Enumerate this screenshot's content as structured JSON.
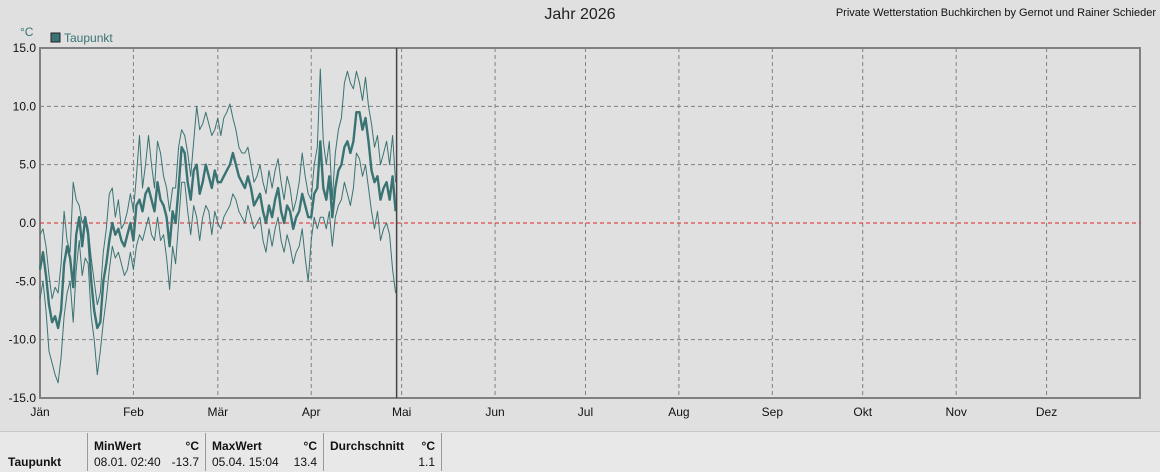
{
  "header": {
    "title": "Jahr 2026",
    "credit": "Private Wetterstation Buchkirchen by Gernot und Rainer Schieder"
  },
  "chart_data": {
    "type": "line",
    "yunit": "°C",
    "ylim": [
      -15,
      15
    ],
    "yticks": [
      "15.0",
      "10.0",
      "5.0",
      "0.0",
      "-5.0",
      "-10.0",
      "-15.0"
    ],
    "month_labels": [
      "Jän",
      "Feb",
      "Mär",
      "Apr",
      "Mai",
      "Jun",
      "Jul",
      "Aug",
      "Sep",
      "Okt",
      "Nov",
      "Dez"
    ],
    "legend": "Taupunkt",
    "grid": true,
    "reference_line": 0,
    "series": [
      {
        "name": "Taupunkt",
        "role": "average",
        "x": [
          1,
          2,
          3,
          4,
          5,
          6,
          7,
          8,
          9,
          10,
          11,
          12,
          13,
          14,
          15,
          16,
          17,
          18,
          19,
          20,
          21,
          22,
          23,
          24,
          25,
          26,
          27,
          28,
          29,
          30,
          31,
          32,
          33,
          34,
          35,
          36,
          37,
          38,
          39,
          40,
          41,
          42,
          43,
          44,
          45,
          46,
          47,
          48,
          49,
          50,
          51,
          52,
          53,
          54,
          55,
          56,
          57,
          58,
          59,
          60,
          61,
          62,
          63,
          64,
          65,
          66,
          67,
          68,
          69,
          70,
          71,
          72,
          73,
          74,
          75,
          76,
          77,
          78,
          79,
          80,
          81,
          82,
          83,
          84,
          85,
          86,
          87,
          88,
          89,
          90,
          91,
          92,
          93,
          94,
          95,
          96,
          97,
          98,
          99,
          100,
          101,
          102,
          103,
          104,
          105,
          106,
          107,
          108,
          109,
          110,
          111,
          112,
          113,
          114,
          115,
          116,
          117,
          118,
          119
        ],
        "y": [
          -4.0,
          -2.5,
          -4.5,
          -7.0,
          -8.5,
          -8.0,
          -9.0,
          -7.5,
          -3.5,
          -2.0,
          -3.0,
          -5.5,
          -1.0,
          0.5,
          -2.0,
          0.5,
          -1.0,
          -5.0,
          -7.5,
          -9.0,
          -8.5,
          -5.0,
          -3.5,
          -1.5,
          0.0,
          -1.0,
          -0.5,
          -1.5,
          -2.0,
          -1.0,
          0.0,
          -1.5,
          1.5,
          2.0,
          1.0,
          2.5,
          3.0,
          2.0,
          1.0,
          3.5,
          2.0,
          1.5,
          0.5,
          -2.0,
          1.0,
          0.0,
          3.0,
          6.5,
          6.0,
          3.5,
          2.0,
          4.5,
          5.0,
          2.5,
          3.5,
          5.0,
          4.0,
          3.0,
          4.5,
          3.5,
          3.5,
          4.0,
          4.5,
          5.0,
          6.0,
          5.0,
          4.0,
          3.5,
          3.0,
          4.0,
          3.0,
          1.5,
          2.0,
          2.5,
          1.0,
          0.0,
          1.5,
          0.5,
          2.0,
          3.0,
          1.0,
          0.0,
          1.5,
          1.0,
          -0.5,
          0.5,
          1.0,
          2.5,
          1.5,
          0.5,
          0.5,
          2.5,
          3.0,
          7.0,
          3.0,
          2.0,
          4.0,
          0.5,
          3.0,
          4.5,
          5.0,
          6.5,
          7.0,
          6.0,
          7.0,
          9.5,
          9.5,
          8.0,
          9.0,
          7.0,
          4.5,
          3.5,
          4.0,
          2.0,
          3.0,
          3.5,
          2.0,
          4.0,
          1.0
        ]
      },
      {
        "name": "Taupunkt",
        "role": "max",
        "x": [
          1,
          2,
          3,
          4,
          5,
          6,
          7,
          8,
          9,
          10,
          11,
          12,
          13,
          14,
          15,
          16,
          17,
          18,
          19,
          20,
          21,
          22,
          23,
          24,
          25,
          26,
          27,
          28,
          29,
          30,
          31,
          32,
          33,
          34,
          35,
          36,
          37,
          38,
          39,
          40,
          41,
          42,
          43,
          44,
          45,
          46,
          47,
          48,
          49,
          50,
          51,
          52,
          53,
          54,
          55,
          56,
          57,
          58,
          59,
          60,
          61,
          62,
          63,
          64,
          65,
          66,
          67,
          68,
          69,
          70,
          71,
          72,
          73,
          74,
          75,
          76,
          77,
          78,
          79,
          80,
          81,
          82,
          83,
          84,
          85,
          86,
          87,
          88,
          89,
          90,
          91,
          92,
          93,
          94,
          95,
          96,
          97,
          98,
          99,
          100,
          101,
          102,
          103,
          104,
          105,
          106,
          107,
          108,
          109,
          110,
          111,
          112,
          113,
          114,
          115,
          116,
          117,
          118,
          119
        ],
        "y": [
          -1.0,
          -0.5,
          -2.0,
          -4.5,
          -6.5,
          -5.5,
          -6.0,
          -3.5,
          1.0,
          -1.5,
          -2.5,
          3.5,
          2.0,
          1.5,
          0.0,
          0.5,
          -0.5,
          -3.0,
          -5.0,
          -7.0,
          -6.0,
          -2.5,
          -0.5,
          2.5,
          3.0,
          0.5,
          2.0,
          -0.5,
          0.0,
          1.0,
          2.5,
          1.0,
          4.0,
          7.5,
          3.0,
          5.0,
          7.5,
          5.0,
          3.0,
          7.0,
          6.0,
          4.0,
          3.0,
          1.0,
          3.0,
          3.0,
          6.5,
          8.0,
          7.5,
          6.0,
          4.0,
          7.0,
          10.0,
          8.0,
          8.5,
          9.5,
          8.5,
          7.5,
          8.0,
          9.0,
          7.5,
          9.0,
          9.5,
          10.2,
          9.0,
          8.0,
          6.5,
          6.0,
          6.0,
          6.5,
          5.0,
          3.5,
          4.0,
          5.0,
          3.5,
          2.5,
          4.5,
          3.0,
          4.5,
          5.5,
          3.5,
          2.0,
          4.0,
          3.0,
          1.0,
          2.0,
          3.5,
          6.0,
          4.0,
          2.5,
          2.0,
          5.0,
          6.5,
          13.2,
          7.0,
          5.0,
          7.0,
          2.0,
          6.0,
          8.0,
          9.0,
          12.0,
          13.0,
          12.0,
          11.5,
          13.0,
          12.0,
          10.5,
          12.5,
          10.0,
          8.5,
          6.5,
          7.5,
          5.0,
          6.0,
          7.0,
          5.0,
          7.5,
          3.5
        ]
      },
      {
        "name": "Taupunkt",
        "role": "min",
        "x": [
          1,
          2,
          3,
          4,
          5,
          6,
          7,
          8,
          9,
          10,
          11,
          12,
          13,
          14,
          15,
          16,
          17,
          18,
          19,
          20,
          21,
          22,
          23,
          24,
          25,
          26,
          27,
          28,
          29,
          30,
          31,
          32,
          33,
          34,
          35,
          36,
          37,
          38,
          39,
          40,
          41,
          42,
          43,
          44,
          45,
          46,
          47,
          48,
          49,
          50,
          51,
          52,
          53,
          54,
          55,
          56,
          57,
          58,
          59,
          60,
          61,
          62,
          63,
          64,
          65,
          66,
          67,
          68,
          69,
          70,
          71,
          72,
          73,
          74,
          75,
          76,
          77,
          78,
          79,
          80,
          81,
          82,
          83,
          84,
          85,
          86,
          87,
          88,
          89,
          90,
          91,
          92,
          93,
          94,
          95,
          96,
          97,
          98,
          99,
          100,
          101,
          102,
          103,
          104,
          105,
          106,
          107,
          108,
          109,
          110,
          111,
          112,
          113,
          114,
          115,
          116,
          117,
          118,
          119
        ],
        "y": [
          -6.5,
          -5.0,
          -7.5,
          -11.0,
          -12.0,
          -13.0,
          -13.7,
          -11.5,
          -8.0,
          -6.0,
          -5.0,
          -8.5,
          -4.0,
          -1.5,
          -4.5,
          -3.0,
          -3.5,
          -8.0,
          -10.0,
          -13.0,
          -11.0,
          -8.5,
          -6.5,
          -4.0,
          -2.0,
          -3.0,
          -2.5,
          -3.5,
          -4.5,
          -4.0,
          -2.5,
          -4.0,
          -2.0,
          -1.0,
          -1.5,
          -0.5,
          0.5,
          -1.0,
          -1.5,
          0.5,
          -1.5,
          -1.0,
          -3.0,
          -5.7,
          -2.0,
          -3.5,
          0.0,
          3.5,
          3.5,
          1.0,
          -1.0,
          1.5,
          0.5,
          -1.5,
          0.5,
          1.5,
          1.0,
          -1.0,
          1.0,
          0.0,
          -0.5,
          0.5,
          1.0,
          1.5,
          2.5,
          2.0,
          1.0,
          0.5,
          0.0,
          1.5,
          0.5,
          -0.5,
          0.0,
          0.5,
          -1.5,
          -2.5,
          -0.5,
          -2.0,
          -0.5,
          0.5,
          -1.5,
          -2.5,
          -1.0,
          -2.0,
          -3.5,
          -2.5,
          -2.0,
          -0.5,
          -3.0,
          -5.0,
          -1.5,
          0.5,
          -0.5,
          0.5,
          0.5,
          -0.5,
          1.0,
          -2.0,
          0.5,
          1.5,
          2.0,
          3.5,
          2.5,
          1.5,
          3.0,
          6.0,
          5.5,
          4.0,
          5.0,
          3.0,
          1.0,
          -0.5,
          1.0,
          -1.5,
          -0.5,
          0.0,
          -1.0,
          -4.0,
          -6.0
        ]
      }
    ]
  },
  "stats_panel": {
    "row_label": "Taupunkt",
    "min": {
      "header": "MinWert",
      "unit": "°C",
      "date": "08.01.  02:40",
      "value": "-13.7"
    },
    "max": {
      "header": "MaxWert",
      "unit": "°C",
      "date": "05.04.  15:04",
      "value": "13.4"
    },
    "avg": {
      "header": "Durchschnitt",
      "unit": "°C",
      "value": "1.1"
    }
  },
  "colors": {
    "series": "#3a7373",
    "background": "#e0e0e0",
    "grid": "#808080",
    "reference": "#dd2222"
  }
}
